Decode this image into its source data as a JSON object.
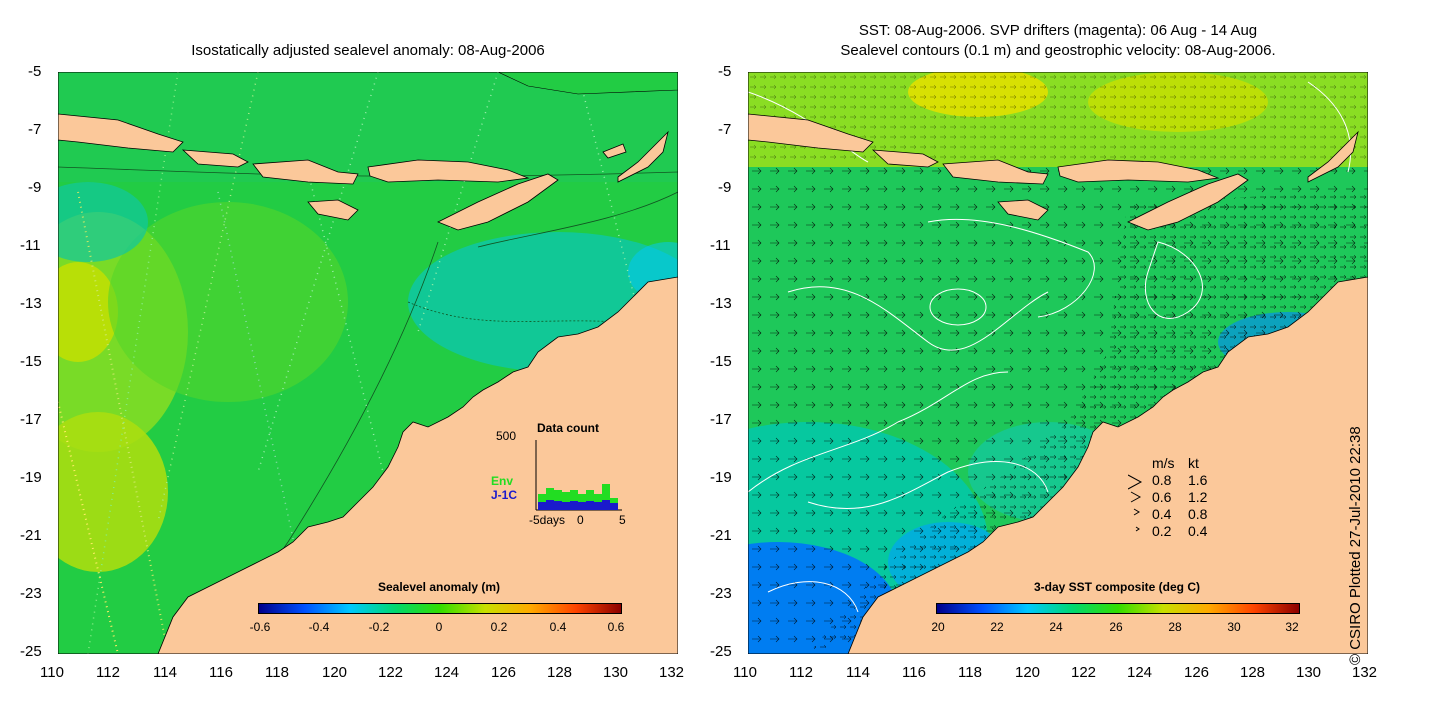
{
  "left_panel": {
    "title": "Isostatically adjusted sealevel anomaly: 08-Aug-2006",
    "colorbar": {
      "title": "Sealevel anomaly (m)",
      "ticks": [
        "-0.6",
        "-0.4",
        "-0.2",
        "0",
        "0.2",
        "0.4",
        "0.6"
      ]
    },
    "inset": {
      "title": "Data count",
      "y_label": "500",
      "series_labels": [
        "Env",
        "J-1C"
      ],
      "series_colors": [
        "#22dd22",
        "#1a1acc"
      ],
      "x_labels": [
        "-5days",
        "0",
        "5"
      ]
    }
  },
  "right_panel": {
    "title_line1": "SST: 08-Aug-2006. SVP drifters (magenta): 06 Aug - 14 Aug",
    "title_line2": "Sealevel contours (0.1 m) and geostrophic velocity: 08-Aug-2006.",
    "colorbar": {
      "title": "3-day SST composite (deg C)",
      "ticks": [
        "20",
        "22",
        "24",
        "26",
        "28",
        "30",
        "32"
      ]
    },
    "velocity_legend": {
      "header_ms": "m/s",
      "header_kt": "kt",
      "rows": [
        {
          "ms": "0.8",
          "kt": "1.6"
        },
        {
          "ms": "0.6",
          "kt": "1.2"
        },
        {
          "ms": "0.4",
          "kt": "0.8"
        },
        {
          "ms": "0.2",
          "kt": "0.4"
        }
      ]
    }
  },
  "axes": {
    "lat_ticks": [
      "-5",
      "-7",
      "-9",
      "-11",
      "-13",
      "-15",
      "-17",
      "-19",
      "-21",
      "-23",
      "-25"
    ],
    "lon_ticks": [
      "110",
      "112",
      "114",
      "116",
      "118",
      "120",
      "122",
      "124",
      "126",
      "128",
      "130",
      "132"
    ]
  },
  "credit": "© CSIRO Plotted 27-Jul-2010 22:38",
  "colors": {
    "land": "#fbc89a",
    "ocean_left": "#22cc44",
    "ocean_right": "#1ec85a",
    "sealevel_colormap": [
      "#00008b",
      "#0050ff",
      "#00c8ff",
      "#00d870",
      "#33dd00",
      "#c8e000",
      "#ffaa00",
      "#ff4400",
      "#8b0000"
    ],
    "sst_colormap": [
      "#00008b",
      "#0050ff",
      "#00c8ff",
      "#00d870",
      "#33dd00",
      "#c8e000",
      "#ffaa00",
      "#ff4400",
      "#8b0000"
    ]
  }
}
